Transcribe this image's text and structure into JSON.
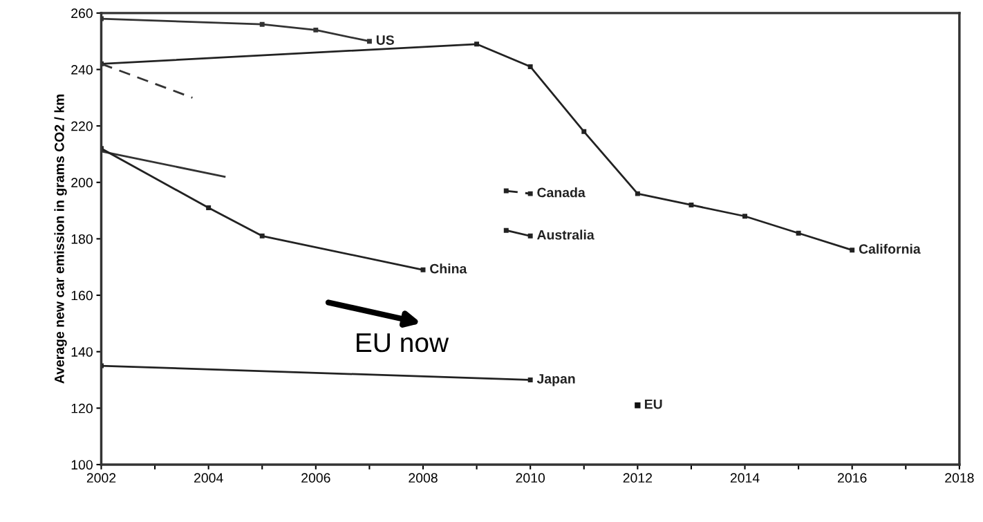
{
  "chart_data": {
    "type": "line",
    "ylabel": "Average new car emission in grams CO2 / km",
    "xlim": [
      2002,
      2018
    ],
    "ylim": [
      100,
      260
    ],
    "xticks": [
      2002,
      {
        "value": 2003,
        "label": null
      },
      2004,
      {
        "value": 2005,
        "label": null
      },
      2006,
      {
        "value": 2007,
        "label": null
      },
      2008,
      {
        "value": 2009,
        "label": null
      },
      2010,
      {
        "value": 2011,
        "label": null
      },
      2012,
      {
        "value": 2013,
        "label": null
      },
      2014,
      {
        "value": 2015,
        "label": null
      },
      2016,
      {
        "value": 2017,
        "label": null
      },
      2018
    ],
    "yticks": [
      100,
      120,
      140,
      160,
      180,
      200,
      220,
      240,
      260
    ],
    "grid": false,
    "legend": false,
    "marker": "square",
    "line_style": "solid",
    "series": [
      {
        "name": "US",
        "color": "#333333",
        "x": [
          2002,
          2005,
          2006,
          2007
        ],
        "values": [
          258,
          256,
          254,
          250
        ]
      },
      {
        "name": "California",
        "color": "#222222",
        "x": [
          2002,
          2009,
          2010,
          2011,
          2012,
          2013,
          2014,
          2015,
          2016
        ],
        "values": [
          242,
          249,
          241,
          218,
          196,
          192,
          188,
          182,
          176
        ]
      },
      {
        "color": "#333333",
        "line_style": "dashed",
        "marker": "none",
        "x": [
          2002,
          2003.7
        ],
        "values": [
          242,
          230
        ]
      },
      {
        "color": "#333333",
        "marker": "none",
        "x": [
          2002,
          2004.3
        ],
        "values": [
          211,
          202
        ]
      },
      {
        "name": "China",
        "color": "#222222",
        "x": [
          2002,
          2004,
          2005,
          2008
        ],
        "values": [
          212,
          191,
          181,
          169
        ]
      },
      {
        "name": "Canada",
        "color": "#222222",
        "line_style": "dashed",
        "x": [
          2009.55,
          2010
        ],
        "values": [
          197,
          196
        ]
      },
      {
        "name": "Australia",
        "color": "#222222",
        "x": [
          2009.55,
          2010
        ],
        "values": [
          183,
          181
        ]
      },
      {
        "name": "Japan",
        "color": "#222222",
        "x": [
          2002,
          2010
        ],
        "values": [
          135,
          130
        ]
      },
      {
        "name": "EU",
        "type": "scatter",
        "color": "#111111",
        "x": [
          2012
        ],
        "values": [
          121
        ]
      }
    ],
    "annotations": [
      "EU now"
    ]
  }
}
